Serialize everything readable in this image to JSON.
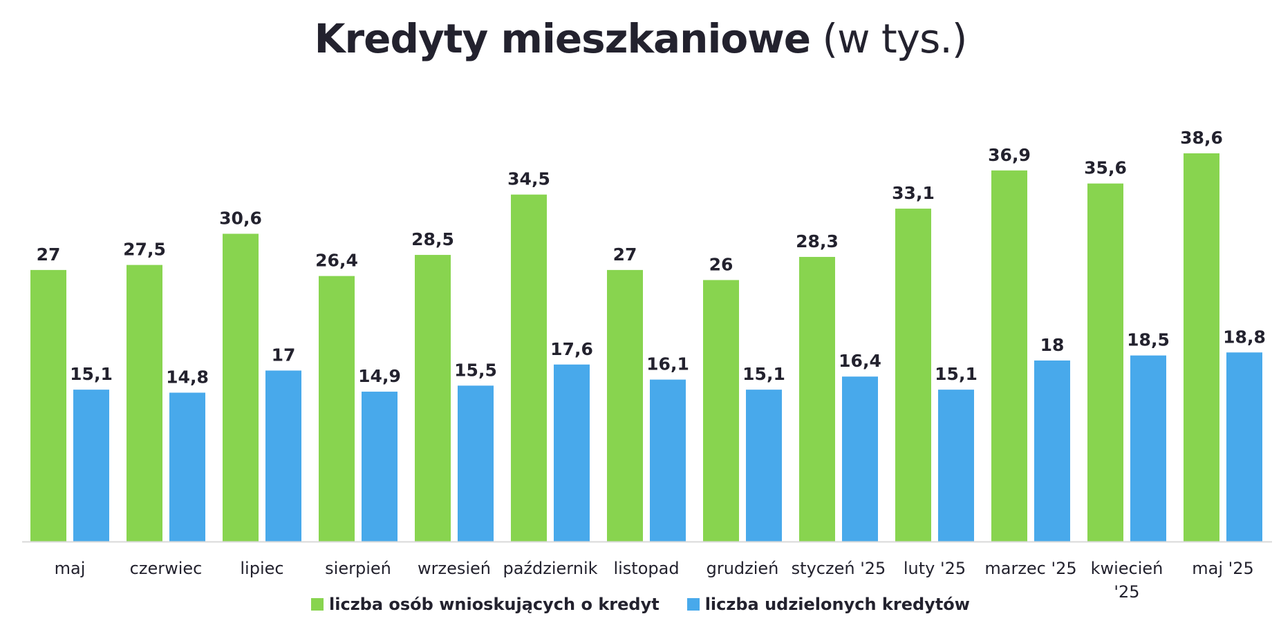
{
  "title": {
    "main": "Kredyty mieszkaniowe",
    "sub": "(w tys.)"
  },
  "chart_data": {
    "type": "bar",
    "categories": [
      "maj",
      "czerwiec",
      "lipiec",
      "sierpień",
      "wrzesień",
      "październik",
      "listopad",
      "grudzień",
      "styczeń '25",
      "luty '25",
      "marzec '25",
      "kwiecień '25",
      "maj '25"
    ],
    "category_lines": [
      [
        "maj"
      ],
      [
        "czerwiec"
      ],
      [
        "lipiec"
      ],
      [
        "sierpień"
      ],
      [
        "wrzesień"
      ],
      [
        "październik"
      ],
      [
        "listopad"
      ],
      [
        "grudzień"
      ],
      [
        "styczeń '25"
      ],
      [
        "luty '25"
      ],
      [
        "marzec '25"
      ],
      [
        "kwiecień",
        "'25"
      ],
      [
        "maj '25"
      ]
    ],
    "series": [
      {
        "name": "liczba osób wnioskujących o kredyt",
        "color": "#88d44f",
        "values": [
          27,
          27.5,
          30.6,
          26.4,
          28.5,
          34.5,
          27,
          26,
          28.3,
          33.1,
          36.9,
          35.6,
          38.6
        ],
        "labels": [
          "27",
          "27,5",
          "30,6",
          "26,4",
          "28,5",
          "34,5",
          "27",
          "26",
          "28,3",
          "33,1",
          "36,9",
          "35,6",
          "38,6"
        ]
      },
      {
        "name": "liczba udzielonych kredytów",
        "color": "#48a9eb",
        "values": [
          15.1,
          14.8,
          17,
          14.9,
          15.5,
          17.6,
          16.1,
          15.1,
          16.4,
          15.1,
          18,
          18.5,
          18.8
        ],
        "labels": [
          "15,1",
          "14,8",
          "17",
          "14,9",
          "15,5",
          "17,6",
          "16,1",
          "15,1",
          "16,4",
          "15,1",
          "18",
          "18,5",
          "18,8"
        ]
      }
    ],
    "ylim": [
      0,
      38.6
    ],
    "xlabel": "",
    "ylabel": "",
    "grid": false,
    "legend": "bottom-center",
    "axis_color": "#d9d9d9"
  }
}
